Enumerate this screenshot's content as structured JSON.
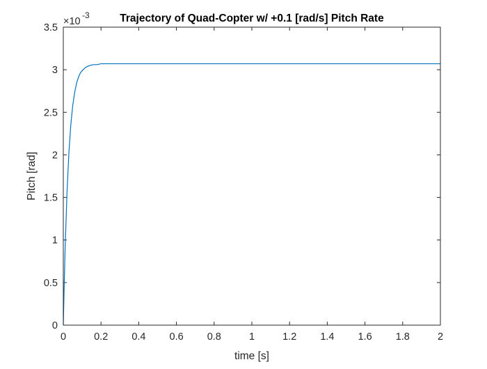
{
  "chart_data": {
    "type": "line",
    "title": "Trajectory of Quad-Copter w/ +0.1 [rad/s] Pitch Rate",
    "xlabel": "time [s]",
    "ylabel": "Pitch [rad]",
    "y_exponent_prefix": "×10",
    "y_exponent": "-3",
    "xlim": [
      0,
      2
    ],
    "ylim": [
      0,
      3.5
    ],
    "y_scale_factor": 0.001,
    "x_ticks": [
      0,
      0.2,
      0.4,
      0.6,
      0.8,
      1,
      1.2,
      1.4,
      1.6,
      1.8,
      2
    ],
    "x_tick_labels": [
      "0",
      "0.2",
      "0.4",
      "0.6",
      "0.8",
      "1",
      "1.2",
      "1.4",
      "1.6",
      "1.8",
      "2"
    ],
    "y_ticks": [
      0,
      0.5,
      1,
      1.5,
      2,
      2.5,
      3,
      3.5
    ],
    "y_tick_labels": [
      "0",
      "0.5",
      "1",
      "1.5",
      "2",
      "2.5",
      "3",
      "3.5"
    ],
    "grid": false,
    "box": true,
    "series": [
      {
        "color": "#0072BD",
        "x": [
          0,
          0.005,
          0.01,
          0.02,
          0.03,
          0.04,
          0.05,
          0.06,
          0.07,
          0.08,
          0.09,
          0.1,
          0.12,
          0.14,
          0.16,
          0.18,
          0.2,
          0.25,
          0.3,
          0.4,
          0.6,
          0.8,
          1.0,
          1.2,
          1.4,
          1.6,
          1.8,
          2.0
        ],
        "y": [
          0,
          0.0005,
          0.00093,
          0.00158,
          0.00204,
          0.00236,
          0.00258,
          0.00273,
          0.00284,
          0.00291,
          0.00296,
          0.00299,
          0.00303,
          0.00305,
          0.00306,
          0.00306,
          0.00307,
          0.00307,
          0.00307,
          0.00307,
          0.00307,
          0.00307,
          0.00307,
          0.00307,
          0.00307,
          0.00307,
          0.00307,
          0.00307
        ]
      }
    ]
  }
}
